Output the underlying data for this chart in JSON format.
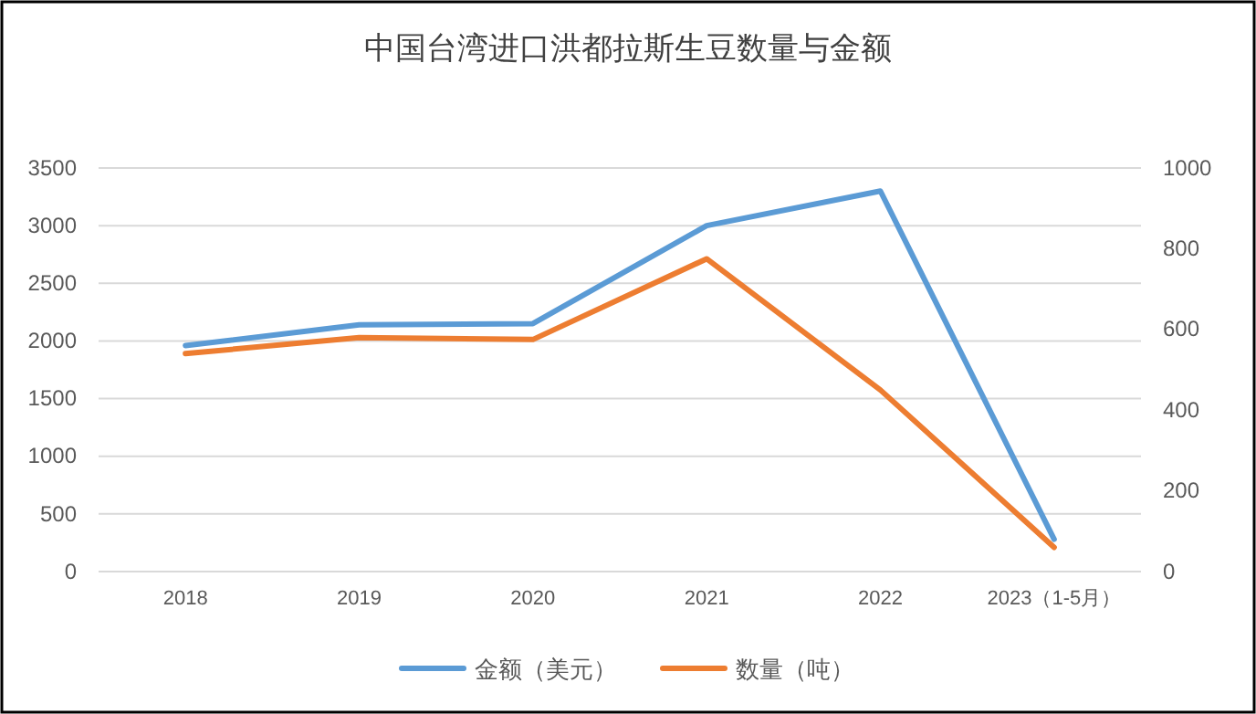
{
  "chart_data": {
    "type": "line",
    "title": "中国台湾进口洪都拉斯生豆数量与金额",
    "categories": [
      "2018",
      "2019",
      "2020",
      "2021",
      "2022",
      "2023（1-5月）"
    ],
    "series": [
      {
        "name": "金额（美元）",
        "color": "#5b9bd5",
        "values": [
          1960,
          2140,
          2150,
          3000,
          3300,
          280
        ]
      },
      {
        "name": "数量（吨）",
        "color": "#ed7d31",
        "axis": "y2",
        "values": [
          540,
          580,
          575,
          775,
          450,
          60
        ]
      }
    ],
    "ylim": [
      0,
      3500
    ],
    "yticks": [
      0,
      500,
      1000,
      1500,
      2000,
      2500,
      3000,
      3500
    ],
    "y2lim": [
      0,
      1000
    ],
    "y2ticks": [
      0,
      200,
      400,
      600,
      800,
      1000
    ],
    "grid": "y",
    "legend": "bottom",
    "marker": "none",
    "line_style": "solid"
  }
}
